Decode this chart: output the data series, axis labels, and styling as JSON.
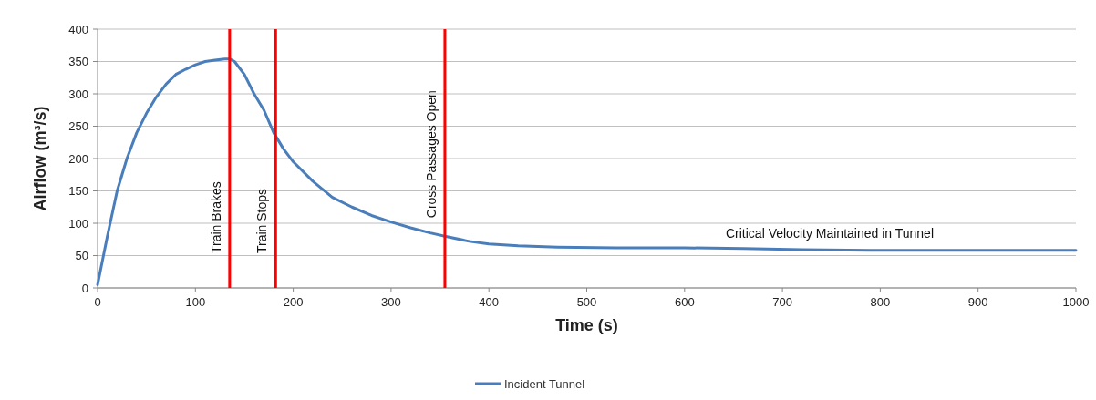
{
  "chart_data": {
    "type": "line",
    "xlabel": "Time (s)",
    "ylabel": "Airflow (m³/s)",
    "xlim": [
      0,
      1000
    ],
    "xticks": [
      0,
      100,
      200,
      300,
      400,
      500,
      600,
      700,
      800,
      900,
      1000
    ],
    "ylim": [
      0,
      400
    ],
    "yticks": [
      0,
      50,
      100,
      150,
      200,
      250,
      300,
      350,
      400
    ],
    "grid": "y",
    "legend": "bottom",
    "marker": "none",
    "line_style": "solid",
    "series": [
      {
        "name": "Incident Tunnel",
        "color": "#4a7ebb",
        "x": [
          0,
          10,
          20,
          30,
          40,
          50,
          60,
          70,
          80,
          90,
          100,
          110,
          120,
          130,
          135,
          140,
          150,
          160,
          170,
          180,
          190,
          200,
          220,
          240,
          260,
          280,
          300,
          320,
          340,
          355,
          380,
          400,
          430,
          470,
          530,
          600,
          660,
          720,
          790,
          900,
          1000
        ],
        "values": [
          5,
          80,
          150,
          200,
          240,
          270,
          295,
          315,
          330,
          338,
          345,
          350,
          352,
          354,
          354,
          350,
          330,
          300,
          275,
          240,
          215,
          195,
          165,
          140,
          125,
          112,
          102,
          93,
          85,
          80,
          72,
          68,
          65,
          63,
          62,
          62,
          61,
          59,
          58,
          58,
          58
        ]
      }
    ],
    "ref_lines": [
      {
        "axis": "x",
        "value": 135,
        "label": "Train Brakes",
        "color": "#ff0000"
      },
      {
        "axis": "x",
        "value": 182,
        "label": "Train Stops",
        "color": "#ff0000"
      },
      {
        "axis": "x",
        "value": 355,
        "label": "Cross Passages Open",
        "color": "#ff0000"
      }
    ],
    "annotations": [
      "Critical Velocity Maintained in Tunnel"
    ]
  }
}
